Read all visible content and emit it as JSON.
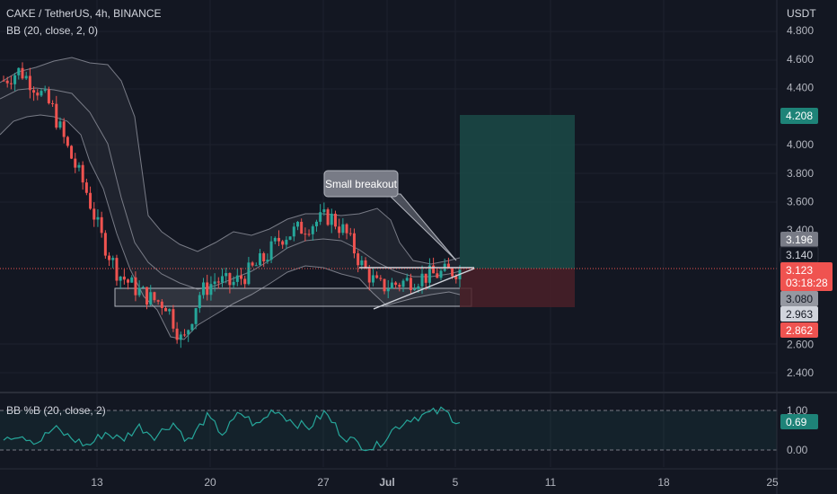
{
  "header": {
    "title": "CAKE / TetherUS, 4h, BINANCE",
    "indicator": "BB (20, close, 2, 0)",
    "sub_indicator": "BB %B (20, close, 2)"
  },
  "axis": {
    "currency": "USDT",
    "price_ticks": [
      "4.800",
      "4.600",
      "4.400",
      "4.000",
      "3.800",
      "3.600",
      "2.600",
      "2.400"
    ],
    "price_tick_values": [
      4.8,
      4.6,
      4.4,
      4.0,
      3.8,
      3.6,
      2.6,
      2.4
    ],
    "osc_ticks": [
      "1.00",
      "0.00"
    ],
    "date_ticks": [
      "13",
      "20",
      "27",
      "Jul",
      "5",
      "11",
      "18",
      "25"
    ]
  },
  "tags": {
    "target": "4.208",
    "p3196": "3.196",
    "p3140": "3.140",
    "current": "3.123",
    "countdown": "03:18:28",
    "p3080": "3.080",
    "p2963": "2.963",
    "stop": "2.862",
    "osc_value": "0.69"
  },
  "annotation": {
    "text": "Small breakout"
  },
  "colors": {
    "background": "#131722",
    "up": "#26a69a",
    "down": "#ef5350",
    "band": "#787b86",
    "profit_zone": "#1b4a47",
    "loss_zone": "#4a2028",
    "osc_line": "#26a69a"
  },
  "chart_data": {
    "type": "candlestick",
    "title": "CAKE / TetherUS, 4h, BINANCE",
    "ylim": [
      2.3,
      4.95
    ],
    "last_price": 3.123,
    "position": {
      "entry": 3.123,
      "target": 4.208,
      "stop": 2.862
    },
    "levels": [
      3.196,
      3.14,
      3.08,
      2.963
    ],
    "price_path": [
      {
        "x": "Jun 7",
        "price": 4.45
      },
      {
        "x": "Jun 8",
        "price": 4.52
      },
      {
        "x": "Jun 9",
        "price": 4.4
      },
      {
        "x": "Jun 10",
        "price": 4.25
      },
      {
        "x": "Jun 11",
        "price": 3.95
      },
      {
        "x": "Jun 12",
        "price": 3.7
      },
      {
        "x": "Jun 13",
        "price": 3.35
      },
      {
        "x": "Jun 14",
        "price": 3.1
      },
      {
        "x": "Jun 15",
        "price": 3.0
      },
      {
        "x": "Jun 16",
        "price": 2.92
      },
      {
        "x": "Jun 17",
        "price": 2.88
      },
      {
        "x": "Jun 18",
        "price": 2.6
      },
      {
        "x": "Jun 19",
        "price": 2.95
      },
      {
        "x": "Jun 20",
        "price": 3.05
      },
      {
        "x": "Jun 21",
        "price": 3.02
      },
      {
        "x": "Jun 22",
        "price": 3.1
      },
      {
        "x": "Jun 23",
        "price": 3.2
      },
      {
        "x": "Jun 24",
        "price": 3.35
      },
      {
        "x": "Jun 25",
        "price": 3.4
      },
      {
        "x": "Jun 26",
        "price": 3.45
      },
      {
        "x": "Jun 27",
        "price": 3.5
      },
      {
        "x": "Jun 28",
        "price": 3.38
      },
      {
        "x": "Jun 29",
        "price": 3.15
      },
      {
        "x": "Jun 30",
        "price": 3.0
      },
      {
        "x": "Jul 1",
        "price": 3.02
      },
      {
        "x": "Jul 2",
        "price": 3.05
      },
      {
        "x": "Jul 3",
        "price": 3.08
      },
      {
        "x": "Jul 4",
        "price": 3.1
      },
      {
        "x": "Jul 5",
        "price": 3.123
      }
    ],
    "osc_path": [
      0.35,
      0.4,
      0.2,
      0.55,
      0.3,
      0.1,
      0.45,
      0.25,
      0.6,
      0.35,
      0.7,
      0.2,
      0.85,
      0.4,
      0.95,
      0.6,
      1.05,
      0.75,
      0.55,
      0.95,
      0.4,
      0.15,
      0.05,
      0.5,
      0.8,
      0.9,
      1.0,
      0.69
    ]
  }
}
